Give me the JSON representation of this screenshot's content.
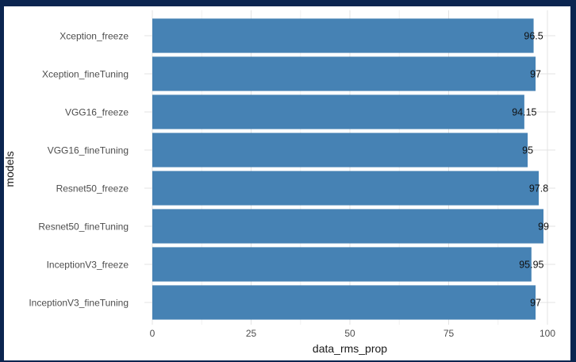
{
  "chart_data": {
    "type": "bar",
    "orientation": "horizontal",
    "categories": [
      "Xception_freeze",
      "Xception_fineTuning",
      "VGG16_freeze",
      "VGG16_fineTuning",
      "Resnet50_freeze",
      "Resnet50_fineTuning",
      "InceptionV3_freeze",
      "InceptionV3_fineTuning"
    ],
    "values": [
      96.5,
      97,
      94.15,
      95,
      97.8,
      99,
      95.95,
      97
    ],
    "data_labels": [
      "96.5",
      "97",
      "94.15",
      "95",
      "97.8",
      "99",
      "95.95",
      "97"
    ],
    "xlabel": "data_rms_prop",
    "ylabel": "models",
    "xlim": [
      0,
      100
    ],
    "xticks": [
      0,
      25,
      50,
      75,
      100
    ],
    "bar_color": "#4682B4",
    "grid": true,
    "legend": "none"
  }
}
